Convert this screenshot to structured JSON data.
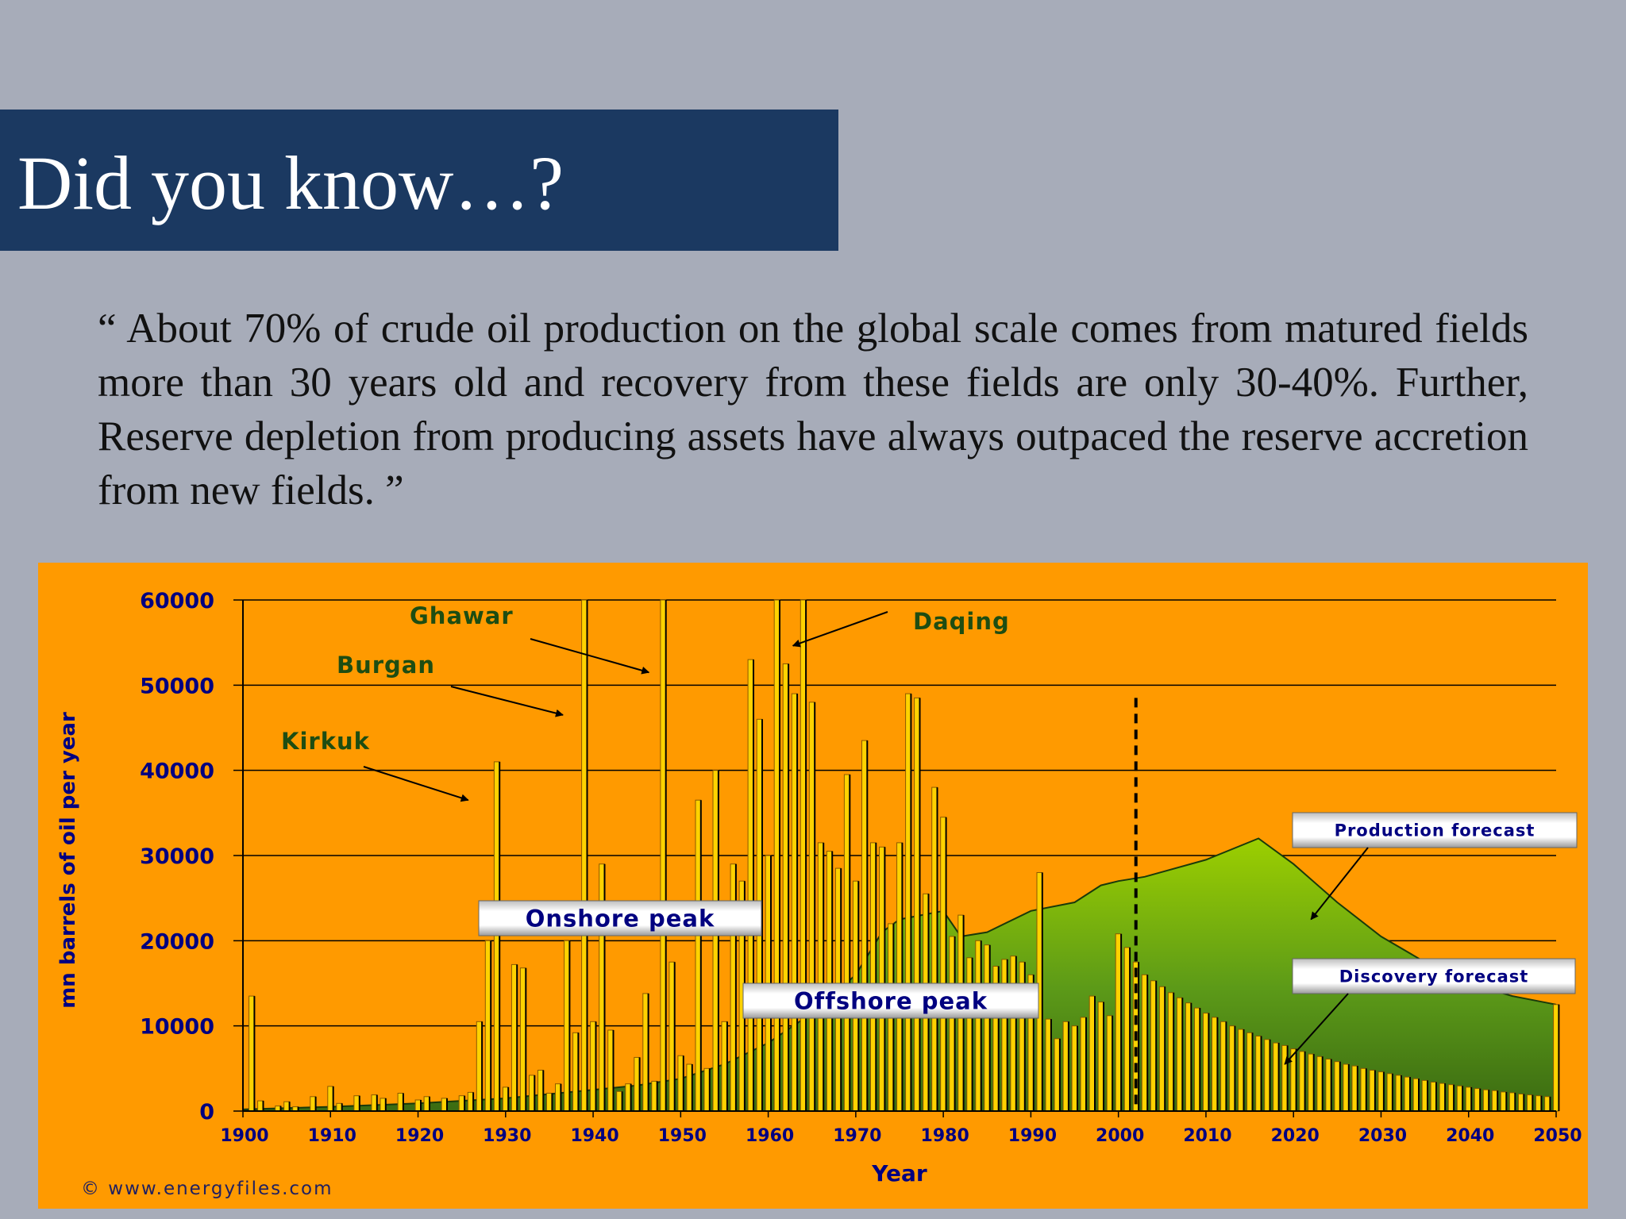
{
  "slide": {
    "title": "Did you know…?",
    "quote": "“ About 70% of crude oil production on the global scale comes from matured fields more than 30 years old and recovery from these fields are only 30-40%. Further, Reserve depletion from producing assets have always outpaced the reserve accretion from new fields. ”"
  },
  "colors": {
    "background": "#a7acb9",
    "title_bar": "#1b3961",
    "chart_bg": "#ff9a00",
    "discovery_bar": "#ffd200",
    "production_area": "#6aa812",
    "axis_text": "#000080",
    "field_label": "#1e4d12"
  },
  "chart_data": {
    "type": "bar",
    "title": "",
    "xlabel": "Year",
    "ylabel": "mn barrels of oil per year",
    "xlim": [
      1900,
      2050
    ],
    "ylim": [
      0,
      60000
    ],
    "x_ticks": [
      1900,
      1910,
      1920,
      1930,
      1940,
      1950,
      1960,
      1970,
      1980,
      1990,
      2000,
      2010,
      2020,
      2030,
      2040,
      2050
    ],
    "y_ticks": [
      0,
      10000,
      20000,
      30000,
      40000,
      50000,
      60000
    ],
    "grid": true,
    "series": [
      {
        "name": "Discovery",
        "style": "bars",
        "points": [
          [
            1901,
            13500
          ],
          [
            1902,
            1200
          ],
          [
            1904,
            600
          ],
          [
            1905,
            1100
          ],
          [
            1906,
            500
          ],
          [
            1908,
            1700
          ],
          [
            1910,
            2900
          ],
          [
            1911,
            900
          ],
          [
            1913,
            1800
          ],
          [
            1915,
            1900
          ],
          [
            1916,
            1500
          ],
          [
            1918,
            2100
          ],
          [
            1920,
            1300
          ],
          [
            1921,
            1700
          ],
          [
            1923,
            1500
          ],
          [
            1925,
            1800
          ],
          [
            1926,
            2200
          ],
          [
            1927,
            10500
          ],
          [
            1928,
            20000
          ],
          [
            1929,
            41000
          ],
          [
            1930,
            2800
          ],
          [
            1931,
            17200
          ],
          [
            1932,
            16800
          ],
          [
            1933,
            4200
          ],
          [
            1934,
            4800
          ],
          [
            1935,
            2100
          ],
          [
            1936,
            3200
          ],
          [
            1937,
            20000
          ],
          [
            1938,
            9200
          ],
          [
            1939,
            60000
          ],
          [
            1940,
            10500
          ],
          [
            1941,
            29000
          ],
          [
            1942,
            9500
          ],
          [
            1943,
            2300
          ],
          [
            1944,
            3200
          ],
          [
            1945,
            6300
          ],
          [
            1946,
            13800
          ],
          [
            1947,
            3500
          ],
          [
            1948,
            60000
          ],
          [
            1949,
            17500
          ],
          [
            1950,
            6500
          ],
          [
            1951,
            5500
          ],
          [
            1952,
            36500
          ],
          [
            1953,
            5000
          ],
          [
            1954,
            40000
          ],
          [
            1955,
            10500
          ],
          [
            1956,
            29000
          ],
          [
            1957,
            27000
          ],
          [
            1958,
            53000
          ],
          [
            1959,
            46000
          ],
          [
            1960,
            30000
          ],
          [
            1961,
            60000
          ],
          [
            1962,
            52500
          ],
          [
            1963,
            49000
          ],
          [
            1964,
            60000
          ],
          [
            1965,
            48000
          ],
          [
            1966,
            31500
          ],
          [
            1967,
            30500
          ],
          [
            1968,
            28500
          ],
          [
            1969,
            39500
          ],
          [
            1970,
            27000
          ],
          [
            1971,
            43500
          ],
          [
            1972,
            31500
          ],
          [
            1973,
            31000
          ],
          [
            1974,
            22000
          ],
          [
            1975,
            31500
          ],
          [
            1976,
            49000
          ],
          [
            1977,
            48500
          ],
          [
            1978,
            25500
          ],
          [
            1979,
            38000
          ],
          [
            1980,
            34500
          ],
          [
            1981,
            20500
          ],
          [
            1982,
            23000
          ],
          [
            1983,
            18000
          ],
          [
            1984,
            20000
          ],
          [
            1985,
            19500
          ],
          [
            1986,
            17000
          ],
          [
            1987,
            17800
          ],
          [
            1988,
            18200
          ],
          [
            1989,
            17500
          ],
          [
            1990,
            16000
          ],
          [
            1991,
            28000
          ],
          [
            1992,
            10800
          ],
          [
            1993,
            8500
          ],
          [
            1994,
            10500
          ],
          [
            1995,
            10000
          ],
          [
            1996,
            11000
          ],
          [
            1997,
            13500
          ],
          [
            1998,
            12800
          ],
          [
            1999,
            11200
          ],
          [
            2000,
            20800
          ],
          [
            2001,
            19200
          ],
          [
            2002,
            17500
          ],
          [
            2003,
            16000
          ],
          [
            2004,
            15300
          ],
          [
            2005,
            14600
          ],
          [
            2006,
            13900
          ],
          [
            2007,
            13300
          ],
          [
            2008,
            12700
          ],
          [
            2009,
            12100
          ],
          [
            2010,
            11500
          ],
          [
            2011,
            11000
          ],
          [
            2012,
            10500
          ],
          [
            2013,
            10000
          ],
          [
            2014,
            9600
          ],
          [
            2015,
            9200
          ],
          [
            2016,
            8800
          ],
          [
            2017,
            8400
          ],
          [
            2018,
            8000
          ],
          [
            2019,
            7700
          ],
          [
            2020,
            7300
          ],
          [
            2021,
            7000
          ],
          [
            2022,
            6700
          ],
          [
            2023,
            6400
          ],
          [
            2024,
            6100
          ],
          [
            2025,
            5800
          ],
          [
            2026,
            5500
          ],
          [
            2027,
            5300
          ],
          [
            2028,
            5000
          ],
          [
            2029,
            4800
          ],
          [
            2030,
            4600
          ],
          [
            2031,
            4400
          ],
          [
            2032,
            4200
          ],
          [
            2033,
            4000
          ],
          [
            2034,
            3800
          ],
          [
            2035,
            3600
          ],
          [
            2036,
            3400
          ],
          [
            2037,
            3250
          ],
          [
            2038,
            3100
          ],
          [
            2039,
            2950
          ],
          [
            2040,
            2800
          ],
          [
            2041,
            2650
          ],
          [
            2042,
            2500
          ],
          [
            2043,
            2400
          ],
          [
            2044,
            2250
          ],
          [
            2045,
            2150
          ],
          [
            2046,
            2000
          ],
          [
            2047,
            1900
          ],
          [
            2048,
            1800
          ],
          [
            2049,
            1700
          ],
          [
            2050,
            12500
          ]
        ]
      },
      {
        "name": "Production",
        "style": "area",
        "points": [
          [
            1900,
            200
          ],
          [
            1910,
            500
          ],
          [
            1920,
            900
          ],
          [
            1930,
            1500
          ],
          [
            1940,
            2500
          ],
          [
            1945,
            3000
          ],
          [
            1950,
            3800
          ],
          [
            1955,
            5500
          ],
          [
            1960,
            8000
          ],
          [
            1965,
            11500
          ],
          [
            1970,
            16000
          ],
          [
            1973,
            21000
          ],
          [
            1975,
            22500
          ],
          [
            1980,
            23500
          ],
          [
            1982,
            20500
          ],
          [
            1985,
            21000
          ],
          [
            1990,
            23500
          ],
          [
            1995,
            24500
          ],
          [
            1998,
            26500
          ],
          [
            2000,
            27000
          ],
          [
            2003,
            27500
          ],
          [
            2010,
            29500
          ],
          [
            2016,
            32000
          ],
          [
            2020,
            29000
          ],
          [
            2025,
            24500
          ],
          [
            2030,
            20500
          ],
          [
            2035,
            17500
          ],
          [
            2040,
            15000
          ],
          [
            2045,
            13500
          ],
          [
            2050,
            12500
          ]
        ]
      }
    ],
    "forecast_start_year": 2002,
    "annotations": [
      {
        "text": "Ghawar",
        "x": 1948,
        "y": 51500
      },
      {
        "text": "Burgan",
        "x": 1938,
        "y": 46500
      },
      {
        "text": "Kirkuk",
        "x": 1927,
        "y": 36500
      },
      {
        "text": "Daqing",
        "x": 1963,
        "y": 55000
      },
      {
        "text": "Onshore peak",
        "x": 1940,
        "y": 22000
      },
      {
        "text": "Offshore peak",
        "x": 1971,
        "y": 12500
      },
      {
        "text": "Production forecast",
        "x": 2022,
        "y": 22500
      },
      {
        "text": "Discovery forecast",
        "x": 2019,
        "y": 5500
      }
    ],
    "credit": "© www.energyfiles.com"
  }
}
